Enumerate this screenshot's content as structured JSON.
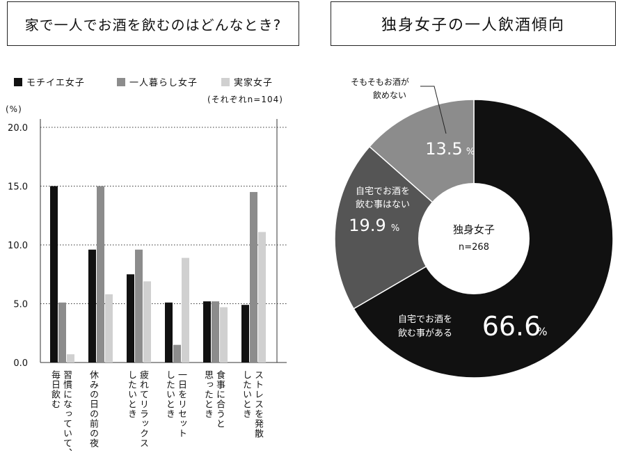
{
  "left_title": "家で一人でお酒を飲むのはどんなとき?",
  "right_title": "独身女子の一人飲酒傾向",
  "chart_data": [
    {
      "type": "bar",
      "categories": [
        "習慣になっていて、\n毎日飲む",
        "休みの日の前の夜",
        "疲れてリラックス\nしたいとき",
        "一日をリセット\nしたいとき",
        "食事に合うと\n思ったとき",
        "ストレスを発散\nしたいとき"
      ],
      "series": [
        {
          "name": "モチイエ女子",
          "color": "#111111",
          "values": [
            15.0,
            9.6,
            7.5,
            5.1,
            5.2,
            4.9
          ]
        },
        {
          "name": "一人暮らし女子",
          "color": "#8c8c8c",
          "values": [
            5.1,
            15.0,
            9.6,
            1.5,
            5.2,
            14.5
          ]
        },
        {
          "name": "実家女子",
          "color": "#d0d0d0",
          "values": [
            0.7,
            5.8,
            6.9,
            8.9,
            4.7,
            11.1
          ]
        }
      ],
      "ylim": [
        0,
        20
      ],
      "yticks": [
        "0.0",
        "5.0",
        "10.0",
        "15.0",
        "20.0"
      ],
      "yunit": "(%)",
      "note": "(それぞれn=104)",
      "grid": true,
      "legend": "top"
    },
    {
      "type": "pie",
      "center_label": "独身女子",
      "center_n": "n=268",
      "slices": [
        {
          "label": "自宅でお酒を\n飲む事がある",
          "value": 66.6,
          "value_text": "66.6",
          "color": "#111111"
        },
        {
          "label": "自宅でお酒を\n飲む事はない",
          "value": 19.9,
          "value_text": "19.9",
          "color": "#555555"
        },
        {
          "label": "そもそもお酒が\n飲めない",
          "value": 13.5,
          "value_text": "13.5",
          "color": "#8c8c8c"
        }
      ],
      "unit": "%"
    }
  ]
}
